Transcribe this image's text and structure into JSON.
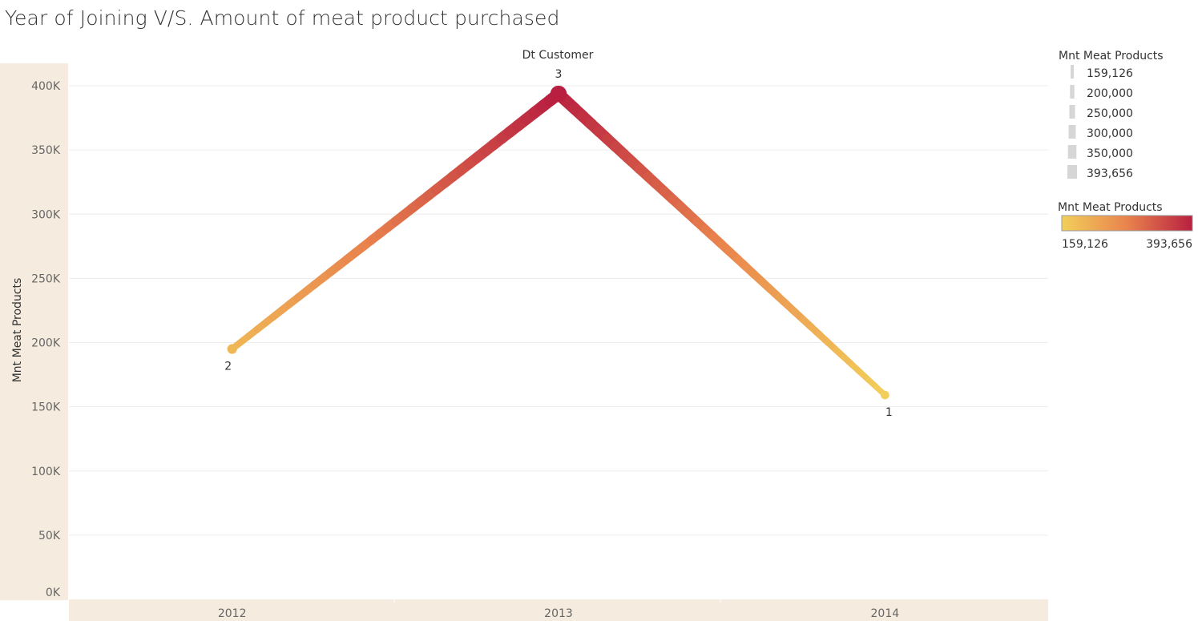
{
  "chart_data": {
    "type": "line",
    "title": "Year of Joining V/S. Amount of meat product purchased",
    "column_header": "Dt Customer",
    "xlabel": "",
    "ylabel": "Mnt Meat Products",
    "categories": [
      "2012",
      "2013",
      "2014"
    ],
    "values": [
      195000,
      393656,
      159126
    ],
    "point_labels": [
      "2",
      "3",
      "1"
    ],
    "ylim": [
      0,
      400000
    ],
    "yticks": [
      {
        "value": 0,
        "label": "0K"
      },
      {
        "value": 50000,
        "label": "50K"
      },
      {
        "value": 100000,
        "label": "100K"
      },
      {
        "value": 150000,
        "label": "150K"
      },
      {
        "value": 200000,
        "label": "200K"
      },
      {
        "value": 250000,
        "label": "250K"
      },
      {
        "value": 300000,
        "label": "300K"
      },
      {
        "value": 350000,
        "label": "350K"
      },
      {
        "value": 400000,
        "label": "400K"
      }
    ],
    "grid": true,
    "color_min": "#f2cf5b",
    "color_mid": "#e9834d",
    "color_max": "#b81f40",
    "legend": {
      "placement": "right",
      "size_title": "Mnt Meat Products",
      "size_items": [
        {
          "label": "159,126",
          "value": 159126
        },
        {
          "label": "200,000",
          "value": 200000
        },
        {
          "label": "250,000",
          "value": 250000
        },
        {
          "label": "300,000",
          "value": 300000
        },
        {
          "label": "350,000",
          "value": 350000
        },
        {
          "label": "393,656",
          "value": 393656
        }
      ],
      "color_title": "Mnt Meat Products",
      "color_min_label": "159,126",
      "color_max_label": "393,656",
      "color_min_value": 159126,
      "color_max_value": 393656
    }
  }
}
